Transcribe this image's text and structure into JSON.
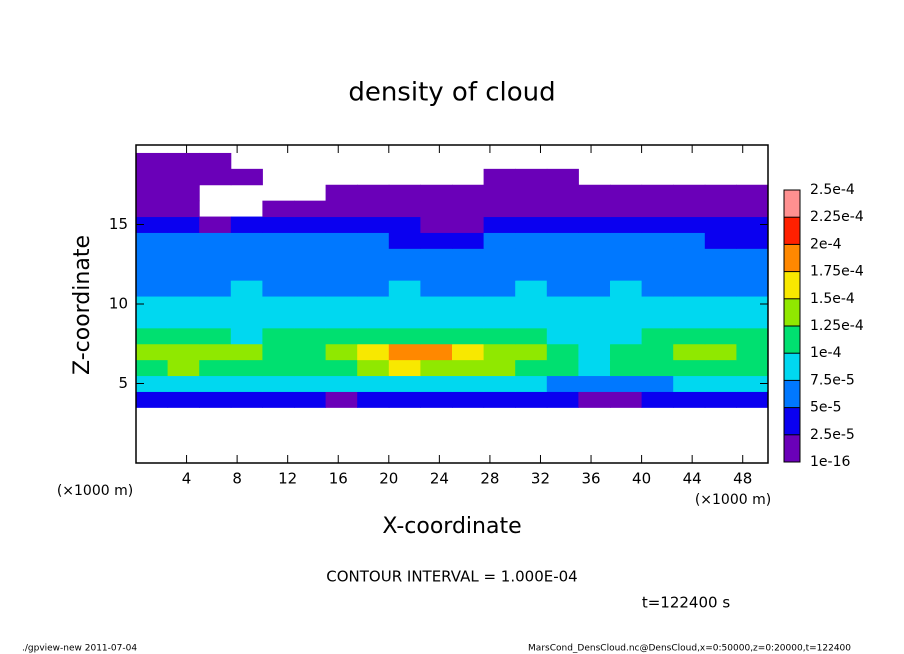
{
  "chart_data": {
    "type": "heatmap",
    "title": "density of cloud",
    "xlabel": "X-coordinate",
    "ylabel": "Z-coordinate",
    "x_unit_left": "(×1000 m)",
    "x_unit_right": "(×1000 m)",
    "contour_note": "CONTOUR INTERVAL = 1.000E-04",
    "time_label": "t=122400 s",
    "footer_left": "./gpview-new  2011-07-04",
    "footer_right": "MarsCond_DensCloud.nc@DensCloud,x=0:50000,z=0:20000,t=122400",
    "xlim": [
      0,
      50
    ],
    "ylim": [
      0,
      20
    ],
    "xticks": [
      4,
      8,
      12,
      16,
      20,
      24,
      28,
      32,
      36,
      40,
      44,
      48
    ],
    "yticks": [
      5,
      10,
      15
    ],
    "levels": [
      {
        "value": 1e-16,
        "label": "1e-16"
      },
      {
        "value": 2.5e-05,
        "label": "2.5e-5"
      },
      {
        "value": 5e-05,
        "label": "5e-5"
      },
      {
        "value": 7.5e-05,
        "label": "7.5e-5"
      },
      {
        "value": 0.0001,
        "label": "1e-4"
      },
      {
        "value": 0.000125,
        "label": "1.25e-4"
      },
      {
        "value": 0.00015,
        "label": "1.5e-4"
      },
      {
        "value": 0.000175,
        "label": "1.75e-4"
      },
      {
        "value": 0.0002,
        "label": "2e-4"
      },
      {
        "value": 0.000225,
        "label": "2.25e-4"
      },
      {
        "value": 0.00025,
        "label": "2.5e-4"
      }
    ],
    "colors": [
      "#6a00b8",
      "#0a00f0",
      "#0078ff",
      "#00d8f0",
      "#00e070",
      "#90e800",
      "#f8e800",
      "#ff8800",
      "#ff2000",
      "#ff9090"
    ],
    "x": [
      1.25,
      3.75,
      6.25,
      8.75,
      11.25,
      13.75,
      16.25,
      18.75,
      21.25,
      23.75,
      26.25,
      28.75,
      31.25,
      33.75,
      36.25,
      38.75,
      41.25,
      43.75,
      46.25,
      48.75
    ],
    "y": [
      4,
      5,
      6,
      7,
      8,
      9,
      10,
      11,
      12,
      13,
      14,
      15,
      16,
      17,
      18,
      19
    ],
    "z": [
      [
        3e-05,
        3e-05,
        3e-05,
        3e-05,
        3e-05,
        3e-05,
        2e-05,
        4e-05,
        4e-05,
        4e-05,
        4e-05,
        4e-05,
        3e-05,
        3e-05,
        2e-05,
        2e-05,
        3e-05,
        3e-05,
        3e-05,
        3e-05
      ],
      [
        8e-05,
        8e-05,
        8e-05,
        8e-05,
        8e-05,
        8e-05,
        8e-05,
        9e-05,
        9e-05,
        9e-05,
        9e-05,
        8e-05,
        8e-05,
        7e-05,
        6e-05,
        6e-05,
        7e-05,
        8e-05,
        8e-05,
        8e-05
      ],
      [
        0.00012,
        0.00013,
        0.00012,
        0.00012,
        0.00011,
        0.00011,
        0.00012,
        0.00014,
        0.00015,
        0.00014,
        0.00013,
        0.00013,
        0.00012,
        0.0001,
        9e-05,
        0.00011,
        0.00011,
        0.00012,
        0.00012,
        0.00012
      ],
      [
        0.00013,
        0.00013,
        0.00014,
        0.00013,
        0.00012,
        0.00012,
        0.00013,
        0.00016,
        0.00019,
        0.00018,
        0.00015,
        0.00014,
        0.00013,
        0.00011,
        9e-05,
        0.00011,
        0.00012,
        0.00013,
        0.00013,
        0.00012
      ],
      [
        0.00011,
        0.0001,
        0.0001,
        9e-05,
        0.0001,
        0.0001,
        0.00011,
        0.00011,
        0.00011,
        0.00011,
        0.0001,
        0.0001,
        0.0001,
        9e-05,
        9e-05,
        9e-05,
        0.0001,
        0.0001,
        0.0001,
        0.0001
      ],
      [
        8e-05,
        8e-05,
        9e-05,
        9e-05,
        8e-05,
        8e-05,
        9e-05,
        9e-05,
        9e-05,
        8e-05,
        8e-05,
        8e-05,
        9e-05,
        8e-05,
        9e-05,
        9e-05,
        8e-05,
        8e-05,
        8e-05,
        8e-05
      ],
      [
        8e-05,
        8e-05,
        8e-05,
        8e-05,
        8e-05,
        8e-05,
        8e-05,
        8e-05,
        8e-05,
        8e-05,
        8e-05,
        8e-05,
        8e-05,
        8e-05,
        8e-05,
        8e-05,
        8e-05,
        8e-05,
        8e-05,
        8e-05
      ],
      [
        7e-05,
        7e-05,
        7e-05,
        8e-05,
        7e-05,
        7e-05,
        7e-05,
        7e-05,
        8e-05,
        7e-05,
        7e-05,
        7e-05,
        8e-05,
        7e-05,
        7e-05,
        8e-05,
        7e-05,
        7e-05,
        7e-05,
        7e-05
      ],
      [
        7e-05,
        6e-05,
        6e-05,
        7e-05,
        7e-05,
        6e-05,
        6e-05,
        7e-05,
        6e-05,
        6e-05,
        6e-05,
        7e-05,
        7e-05,
        6e-05,
        7e-05,
        6e-05,
        6e-05,
        7e-05,
        6e-05,
        6e-05
      ],
      [
        6e-05,
        6e-05,
        6e-05,
        6e-05,
        6e-05,
        6e-05,
        6e-05,
        6e-05,
        5e-05,
        5e-05,
        5e-05,
        6e-05,
        6e-05,
        6e-05,
        6e-05,
        6e-05,
        6e-05,
        6e-05,
        5e-05,
        5e-05
      ],
      [
        5e-05,
        5e-05,
        5e-05,
        6e-05,
        6e-05,
        5e-05,
        5e-05,
        5e-05,
        4e-05,
        4e-05,
        4e-05,
        5e-05,
        5e-05,
        6e-05,
        6e-05,
        5e-05,
        5e-05,
        5e-05,
        4e-05,
        4e-05
      ],
      [
        4e-05,
        3e-05,
        2e-05,
        3e-05,
        4e-05,
        4e-05,
        4e-05,
        3e-05,
        3e-05,
        2e-05,
        2e-05,
        3e-05,
        4e-05,
        4e-05,
        4e-05,
        4e-05,
        3e-05,
        3e-05,
        3e-05,
        3e-05
      ],
      [
        2e-05,
        1e-05,
        null,
        null,
        1e-05,
        1e-05,
        2e-05,
        2e-05,
        1e-05,
        1e-05,
        1e-05,
        1e-05,
        2e-05,
        2e-05,
        2e-05,
        2e-05,
        1e-05,
        1e-05,
        1e-05,
        1e-05
      ],
      [
        1e-05,
        1e-05,
        null,
        null,
        null,
        null,
        1e-05,
        1e-05,
        1e-05,
        1e-05,
        1e-05,
        1e-05,
        1e-05,
        1e-05,
        1e-05,
        1e-05,
        1e-05,
        1e-05,
        1e-05,
        1e-05
      ],
      [
        1e-05,
        1e-05,
        1e-05,
        1e-05,
        null,
        null,
        null,
        null,
        null,
        null,
        null,
        1e-05,
        1e-05,
        1e-05,
        null,
        null,
        null,
        null,
        null,
        null
      ],
      [
        1e-05,
        1e-05,
        1e-05,
        null,
        null,
        null,
        null,
        null,
        null,
        null,
        null,
        null,
        null,
        null,
        null,
        null,
        null,
        null,
        null,
        null
      ]
    ]
  }
}
